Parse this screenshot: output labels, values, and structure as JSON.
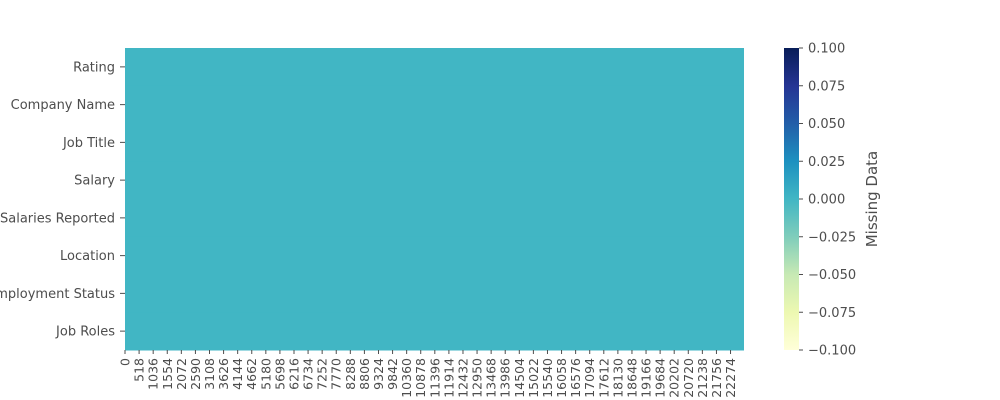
{
  "chart_data": {
    "type": "heatmap",
    "rows": [
      "Rating",
      "Company Name",
      "Job Title",
      "Salary",
      "Salaries Reported",
      "Location",
      "Employment Status",
      "Job Roles"
    ],
    "columns": {
      "count": 22770,
      "tick_labels": [
        "0",
        "518",
        "1036",
        "1554",
        "2072",
        "2590",
        "3108",
        "3626",
        "4144",
        "4662",
        "5180",
        "5698",
        "6216",
        "6734",
        "7252",
        "7770",
        "8288",
        "8806",
        "9324",
        "9842",
        "10360",
        "10878",
        "11396",
        "11914",
        "12432",
        "12950",
        "13468",
        "13986",
        "14504",
        "15022",
        "15540",
        "16058",
        "16576",
        "17094",
        "17612",
        "18130",
        "18648",
        "19166",
        "19684",
        "20202",
        "20720",
        "21238",
        "21756",
        "22274"
      ]
    },
    "cell_value": 0,
    "colorbar": {
      "label": "Missing Data",
      "range": [
        -0.1,
        0.1
      ],
      "ticks": [
        "0.100",
        "0.075",
        "0.050",
        "0.025",
        "0.000",
        "−0.025",
        "−0.050",
        "−0.075",
        "−0.100"
      ],
      "colormap": "YlGnBu"
    },
    "cell_color": "#41b6c4"
  }
}
